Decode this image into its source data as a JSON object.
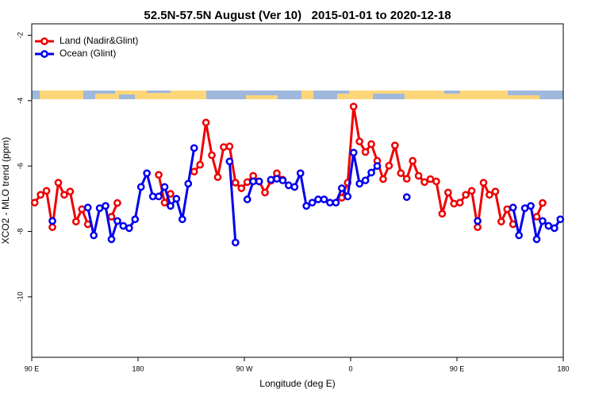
{
  "chart_data": {
    "type": "line",
    "title": "52.5N-57.5N August (Ver 10)   2015-01-01 to 2020-12-18",
    "x_label": "Longitude (deg E)",
    "y_label": "XCO2 - MLO trend (ppm)",
    "xlim": [
      90,
      540
    ],
    "xticks": [
      {
        "value": 90,
        "label": "90 E"
      },
      180,
      {
        "value": 270,
        "label": "90 W"
      },
      {
        "value": 360,
        "label": "0"
      },
      {
        "value": 450,
        "label": "90 E"
      },
      {
        "value": 540,
        "label": "180"
      }
    ],
    "ylim": [
      -11.85,
      -1.65
    ],
    "yticks": [
      -2,
      -4,
      -6,
      -8,
      -10
    ],
    "legend": "top-left",
    "x": [
      92.5,
      97.5,
      102.5,
      107.5,
      112.5,
      117.5,
      122.5,
      127.5,
      132.5,
      137.5,
      142.5,
      147.5,
      152.5,
      157.5,
      162.5,
      167.5,
      172.5,
      177.5,
      182.5,
      187.5,
      192.5,
      197.5,
      202.5,
      207.5,
      212.5,
      217.5,
      222.5,
      227.5,
      232.5,
      237.5,
      242.5,
      247.5,
      252.5,
      257.5,
      262.5,
      267.5,
      272.5,
      277.5,
      282.5,
      287.5,
      292.5,
      297.5,
      302.5,
      307.5,
      312.5,
      317.5,
      322.5,
      327.5,
      332.5,
      337.5,
      342.5,
      347.5,
      352.5,
      357.5,
      362.5,
      367.5,
      372.5,
      377.5,
      382.5,
      387.5,
      392.5,
      397.5,
      402.5,
      407.5,
      412.5,
      417.5,
      422.5,
      427.5,
      432.5,
      437.5,
      442.5,
      447.5,
      452.5,
      457.5,
      462.5,
      467.5,
      472.5,
      477.5,
      482.5,
      487.5,
      492.5,
      497.5,
      502.5,
      507.5,
      512.5,
      517.5,
      522.5,
      527.5,
      532.5,
      537.5
    ],
    "series": [
      {
        "name": "Land (Nadir&Glint)",
        "color": "#ee0000",
        "values": [
          -7.12,
          -6.88,
          -6.76,
          -7.87,
          -6.51,
          -6.88,
          -6.78,
          -7.7,
          -7.32,
          -7.78,
          null,
          null,
          null,
          -7.55,
          -7.13,
          null,
          null,
          null,
          null,
          null,
          null,
          -6.27,
          -7.12,
          -6.85,
          null,
          null,
          null,
          -6.17,
          -5.96,
          -4.67,
          -5.67,
          -6.34,
          -5.42,
          -5.4,
          -6.51,
          -6.68,
          -6.49,
          -6.3,
          -6.47,
          -6.81,
          -6.45,
          -6.22,
          -6.42,
          null,
          null,
          null,
          null,
          null,
          null,
          null,
          null,
          null,
          -6.97,
          -6.51,
          -4.18,
          -5.25,
          -5.57,
          -5.33,
          -5.84,
          -6.4,
          -5.99,
          -5.37,
          -6.22,
          -6.39,
          -5.84,
          -6.3,
          -6.49,
          -6.4,
          -6.47,
          -7.46,
          -6.81,
          -7.15,
          -7.12,
          -6.88,
          -6.76,
          -7.87,
          -6.51,
          -6.88,
          -6.78,
          -7.7,
          -7.32,
          -7.78,
          null,
          null,
          null,
          -7.55,
          -7.13,
          null,
          null,
          null
        ]
      },
      {
        "name": "Ocean (Glint)",
        "color": "#0000ee",
        "values": [
          null,
          null,
          null,
          -7.68,
          null,
          null,
          null,
          null,
          null,
          -7.27,
          -8.12,
          -7.29,
          -7.22,
          -8.24,
          -7.68,
          -7.83,
          -7.9,
          -7.63,
          -6.64,
          -6.22,
          -6.93,
          -6.93,
          -6.64,
          -7.22,
          -7.0,
          -7.63,
          -6.54,
          -5.45,
          null,
          null,
          null,
          null,
          null,
          -5.86,
          -8.34,
          null,
          -7.02,
          -6.47,
          -6.47,
          null,
          -6.42,
          -6.39,
          -6.44,
          -6.59,
          -6.64,
          -6.22,
          -7.22,
          -7.12,
          -7.02,
          -7.02,
          -7.12,
          -7.12,
          -6.68,
          -6.93,
          -5.59,
          -6.54,
          -6.44,
          -6.2,
          -6.0,
          null,
          null,
          null,
          null,
          -6.95,
          null,
          null,
          null,
          null,
          null,
          null,
          null,
          null,
          null,
          null,
          null,
          -7.68,
          null,
          null,
          null,
          null,
          null,
          -7.27,
          -8.12,
          -7.29,
          -7.22,
          -8.24,
          -7.68,
          -7.83,
          -7.9,
          -7.63
        ]
      }
    ]
  }
}
